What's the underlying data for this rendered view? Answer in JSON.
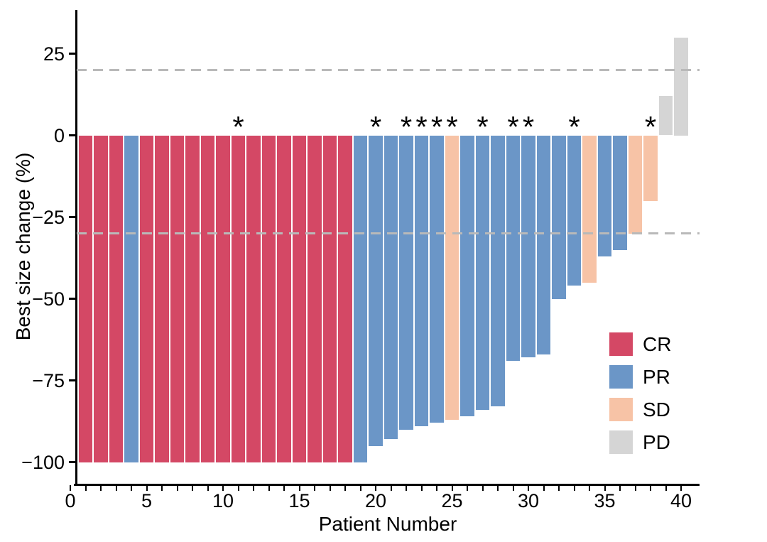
{
  "chart_data": {
    "type": "bar",
    "title": "",
    "xlabel": "Patient Number",
    "ylabel": "Best size change (%)",
    "xlim": [
      0,
      41
    ],
    "ylim": [
      -100,
      32
    ],
    "grid": false,
    "legend_position": "right-middle",
    "annotation_symbol": "*",
    "reference_lines": [
      20,
      -30
    ],
    "reference_line_style": "dashed-gray",
    "yticks": [
      {
        "value": 25,
        "label": "25"
      },
      {
        "value": 0,
        "label": "0"
      },
      {
        "value": -25,
        "label": "−25"
      },
      {
        "value": -50,
        "label": "−50"
      },
      {
        "value": -75,
        "label": "−75"
      },
      {
        "value": -100,
        "label": "−100"
      }
    ],
    "xtick_labels": [
      {
        "value": 0,
        "label": "0"
      },
      {
        "value": 5,
        "label": "5"
      },
      {
        "value": 10,
        "label": "10"
      },
      {
        "value": 15,
        "label": "15"
      },
      {
        "value": 20,
        "label": "20"
      },
      {
        "value": 25,
        "label": "25"
      },
      {
        "value": 30,
        "label": "30"
      },
      {
        "value": 35,
        "label": "35"
      },
      {
        "value": 40,
        "label": "40"
      }
    ],
    "legend": [
      {
        "key": "CR",
        "label": "CR",
        "color": "#d44865"
      },
      {
        "key": "PR",
        "label": "PR",
        "color": "#6b96c7"
      },
      {
        "key": "SD",
        "label": "SD",
        "color": "#f7c3a6"
      },
      {
        "key": "PD",
        "label": "PD",
        "color": "#d5d5d5"
      }
    ],
    "patients": [
      {
        "patient": 1,
        "value": -100,
        "response": "CR",
        "star": false
      },
      {
        "patient": 2,
        "value": -100,
        "response": "CR",
        "star": false
      },
      {
        "patient": 3,
        "value": -100,
        "response": "CR",
        "star": false
      },
      {
        "patient": 4,
        "value": -100,
        "response": "PR",
        "star": false
      },
      {
        "patient": 5,
        "value": -100,
        "response": "CR",
        "star": false
      },
      {
        "patient": 6,
        "value": -100,
        "response": "CR",
        "star": false
      },
      {
        "patient": 7,
        "value": -100,
        "response": "CR",
        "star": false
      },
      {
        "patient": 8,
        "value": -100,
        "response": "CR",
        "star": false
      },
      {
        "patient": 9,
        "value": -100,
        "response": "CR",
        "star": false
      },
      {
        "patient": 10,
        "value": -100,
        "response": "CR",
        "star": false
      },
      {
        "patient": 11,
        "value": -100,
        "response": "CR",
        "star": true
      },
      {
        "patient": 12,
        "value": -100,
        "response": "CR",
        "star": false
      },
      {
        "patient": 13,
        "value": -100,
        "response": "CR",
        "star": false
      },
      {
        "patient": 14,
        "value": -100,
        "response": "CR",
        "star": false
      },
      {
        "patient": 15,
        "value": -100,
        "response": "CR",
        "star": false
      },
      {
        "patient": 16,
        "value": -100,
        "response": "CR",
        "star": false
      },
      {
        "patient": 17,
        "value": -100,
        "response": "CR",
        "star": false
      },
      {
        "patient": 18,
        "value": -100,
        "response": "CR",
        "star": false
      },
      {
        "patient": 19,
        "value": -100,
        "response": "PR",
        "star": false
      },
      {
        "patient": 20,
        "value": -95,
        "response": "PR",
        "star": true
      },
      {
        "patient": 21,
        "value": -93,
        "response": "PR",
        "star": false
      },
      {
        "patient": 22,
        "value": -90,
        "response": "PR",
        "star": true
      },
      {
        "patient": 23,
        "value": -89,
        "response": "PR",
        "star": true
      },
      {
        "patient": 24,
        "value": -88,
        "response": "PR",
        "star": true
      },
      {
        "patient": 25,
        "value": -87,
        "response": "SD",
        "star": true
      },
      {
        "patient": 26,
        "value": -86,
        "response": "PR",
        "star": false
      },
      {
        "patient": 27,
        "value": -84,
        "response": "PR",
        "star": true
      },
      {
        "patient": 28,
        "value": -83,
        "response": "PR",
        "star": false
      },
      {
        "patient": 29,
        "value": -69,
        "response": "PR",
        "star": true
      },
      {
        "patient": 30,
        "value": -68,
        "response": "PR",
        "star": true
      },
      {
        "patient": 31,
        "value": -67,
        "response": "PR",
        "star": false
      },
      {
        "patient": 32,
        "value": -50,
        "response": "PR",
        "star": false
      },
      {
        "patient": 33,
        "value": -46,
        "response": "PR",
        "star": true
      },
      {
        "patient": 34,
        "value": -45,
        "response": "SD",
        "star": false
      },
      {
        "patient": 35,
        "value": -37,
        "response": "PR",
        "star": false
      },
      {
        "patient": 36,
        "value": -35,
        "response": "PR",
        "star": false
      },
      {
        "patient": 37,
        "value": -30,
        "response": "SD",
        "star": false
      },
      {
        "patient": 38,
        "value": -20,
        "response": "SD",
        "star": true
      },
      {
        "patient": 39,
        "value": 12,
        "response": "PD",
        "star": false
      },
      {
        "patient": 40,
        "value": 30,
        "response": "PD",
        "star": false
      }
    ]
  },
  "colors": {
    "axis": "#000000",
    "text": "#000000",
    "reference_line": "#b9b9b9",
    "background": "#ffffff"
  }
}
